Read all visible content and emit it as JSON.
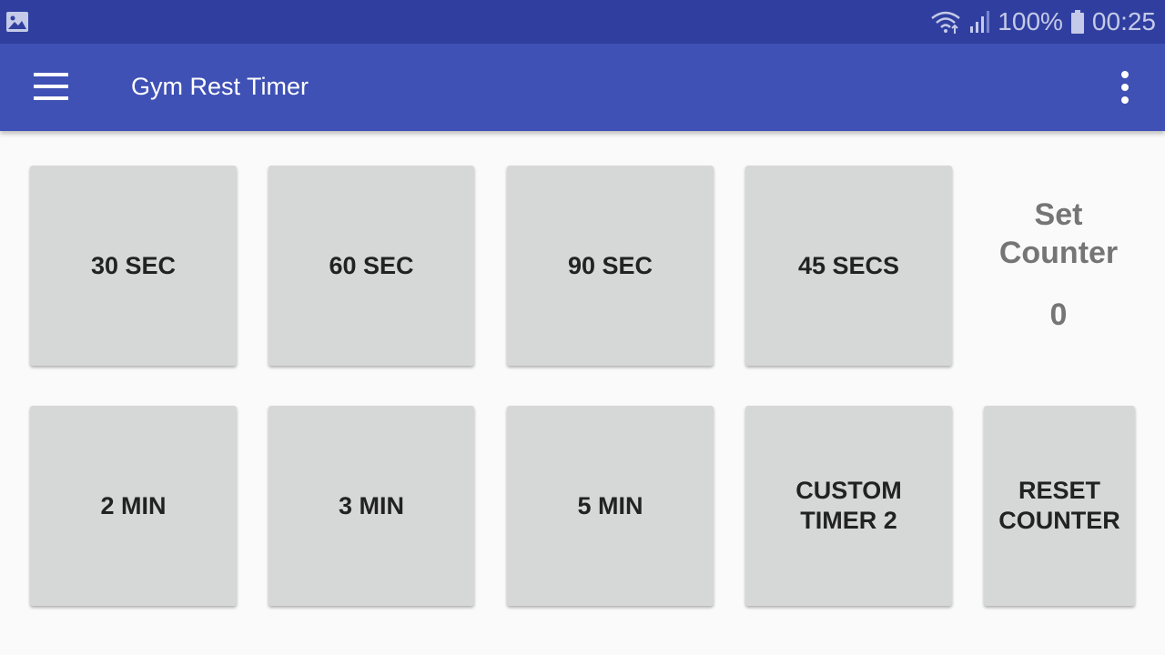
{
  "status_bar": {
    "notification_icon": "image-icon",
    "wifi_icon": "wifi-icon",
    "signal_icon": "signal-icon",
    "battery_text": "100%",
    "battery_icon": "battery-icon",
    "time": "00:25"
  },
  "app_bar": {
    "title": "Gym Rest Timer",
    "menu_icon": "hamburger-menu-icon",
    "more_icon": "more-vert-icon",
    "color": "#3f51b5"
  },
  "timers": [
    {
      "label": "30 SEC"
    },
    {
      "label": "60 SEC"
    },
    {
      "label": "90 SEC"
    },
    {
      "label": "45 SECS"
    },
    {
      "label": "2 MIN"
    },
    {
      "label": "3 MIN"
    },
    {
      "label": "5 MIN"
    },
    {
      "label": "CUSTOM\nTIMER 2"
    }
  ],
  "set_counter": {
    "label": "Set\nCounter",
    "value": "0"
  },
  "reset_button": {
    "label": "RESET\nCOUNTER"
  }
}
